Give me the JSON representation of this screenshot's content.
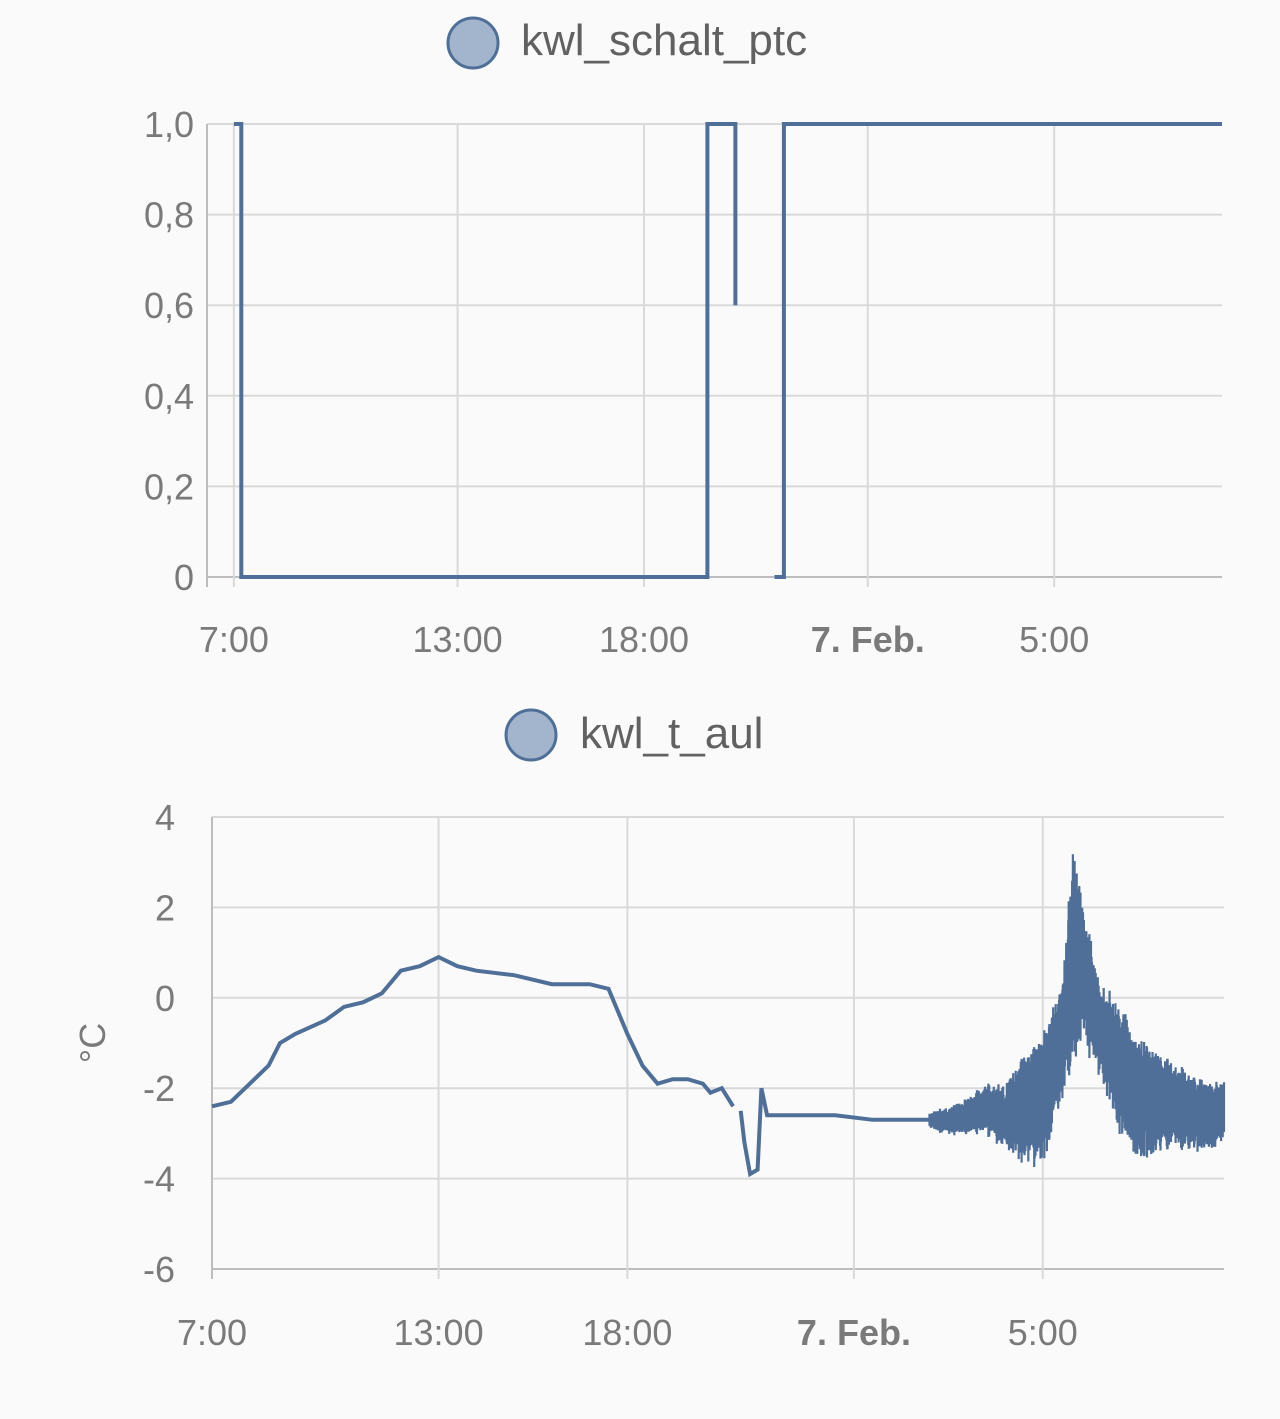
{
  "accent_color": "#4f6f98",
  "legend_fill": "#a3b5cc",
  "chart_data": [
    {
      "type": "line",
      "step": true,
      "series": [
        {
          "name": "kwl_schalt_ptc"
        }
      ],
      "x_tick_labels": [
        "7:00",
        "13:00",
        "18:00",
        "7. Feb.",
        "5:00"
      ],
      "x_tick_hours": [
        7,
        13,
        18,
        24,
        29
      ],
      "x_tick_bold": [
        false,
        false,
        false,
        true,
        false
      ],
      "xlim_hours": [
        6.95,
        33.5
      ],
      "y_ticks": [
        0,
        0.2,
        0.4,
        0.6,
        0.8,
        1.0
      ],
      "y_tick_labels": [
        "0",
        "0,2",
        "0,4",
        "0,6",
        "0,8",
        "1,0"
      ],
      "ylim": [
        0,
        1.0
      ],
      "ylabel": "",
      "segments": [
        [
          [
            7.0,
            1
          ],
          [
            7.2,
            1
          ],
          [
            7.2,
            0
          ],
          [
            19.7,
            0
          ],
          [
            19.7,
            1
          ],
          [
            20.45,
            1
          ],
          [
            20.45,
            0.6
          ]
        ],
        [
          [
            21.5,
            0
          ],
          [
            21.75,
            0
          ],
          [
            21.75,
            1
          ],
          [
            33.5,
            1
          ]
        ]
      ]
    },
    {
      "type": "line",
      "series": [
        {
          "name": "kwl_t_aul"
        }
      ],
      "x_tick_labels": [
        "7:00",
        "13:00",
        "18:00",
        "7. Feb.",
        "5:00"
      ],
      "x_tick_hours": [
        7,
        13,
        18,
        24,
        29
      ],
      "x_tick_bold": [
        false,
        false,
        false,
        true,
        false
      ],
      "xlim_hours": [
        7.0,
        33.8
      ],
      "y_ticks": [
        4,
        2,
        0,
        -2,
        -4,
        -6
      ],
      "y_tick_labels": [
        "4",
        "2",
        "0",
        "-2",
        "-4",
        "-6"
      ],
      "ylim": [
        -6,
        4
      ],
      "ylabel": "°C",
      "segments": [
        [
          [
            7.0,
            -2.4
          ],
          [
            7.5,
            -2.3
          ],
          [
            8.0,
            -1.9
          ],
          [
            8.5,
            -1.5
          ],
          [
            8.8,
            -1.0
          ],
          [
            9.2,
            -0.8
          ],
          [
            10.0,
            -0.5
          ],
          [
            10.5,
            -0.2
          ],
          [
            11.0,
            -0.1
          ],
          [
            11.5,
            0.1
          ],
          [
            12.0,
            0.6
          ],
          [
            12.5,
            0.7
          ],
          [
            13.0,
            0.9
          ],
          [
            13.5,
            0.7
          ],
          [
            14.0,
            0.6
          ],
          [
            15.0,
            0.5
          ],
          [
            16.0,
            0.3
          ],
          [
            17.0,
            0.3
          ],
          [
            17.5,
            0.2
          ],
          [
            18.0,
            -0.8
          ],
          [
            18.4,
            -1.5
          ],
          [
            18.8,
            -1.9
          ],
          [
            19.2,
            -1.8
          ],
          [
            19.6,
            -1.8
          ],
          [
            20.0,
            -1.9
          ],
          [
            20.2,
            -2.1
          ],
          [
            20.5,
            -2.0
          ],
          [
            20.8,
            -2.4
          ]
        ],
        [
          [
            21.0,
            -2.5
          ],
          [
            21.1,
            -3.2
          ],
          [
            21.25,
            -3.9
          ],
          [
            21.45,
            -3.8
          ],
          [
            21.55,
            -2.0
          ],
          [
            21.7,
            -2.6
          ],
          [
            22.5,
            -2.6
          ],
          [
            23.5,
            -2.6
          ],
          [
            24.5,
            -2.7
          ],
          [
            25.5,
            -2.7
          ],
          [
            26.5,
            -2.7
          ],
          [
            27.0,
            -2.6
          ],
          [
            27.5,
            -2.4
          ],
          [
            28.0,
            -2.6
          ],
          [
            28.5,
            -2.3
          ],
          [
            29.0,
            -2.1
          ],
          [
            29.5,
            -0.9
          ],
          [
            29.8,
            1.0
          ],
          [
            30.0,
            0.9
          ],
          [
            30.5,
            -0.6
          ],
          [
            31.0,
            -1.4
          ],
          [
            31.5,
            -2.1
          ],
          [
            32.0,
            -2.2
          ],
          [
            32.5,
            -2.3
          ],
          [
            33.0,
            -2.5
          ],
          [
            33.5,
            -2.6
          ],
          [
            33.8,
            -2.4
          ]
        ]
      ],
      "noise_band": {
        "x_start": 26.0,
        "x_end": 33.8,
        "samples": [
          [
            26.0,
            0.2
          ],
          [
            27.0,
            0.4
          ],
          [
            28.0,
            0.7
          ],
          [
            28.5,
            1.2
          ],
          [
            29.0,
            1.4
          ],
          [
            29.5,
            1.2
          ],
          [
            29.8,
            2.5
          ],
          [
            30.0,
            1.6
          ],
          [
            30.5,
            1.0
          ],
          [
            31.0,
            1.4
          ],
          [
            31.5,
            1.3
          ],
          [
            32.0,
            1.2
          ],
          [
            32.5,
            1.0
          ],
          [
            33.0,
            0.8
          ],
          [
            33.8,
            0.7
          ]
        ]
      }
    }
  ]
}
